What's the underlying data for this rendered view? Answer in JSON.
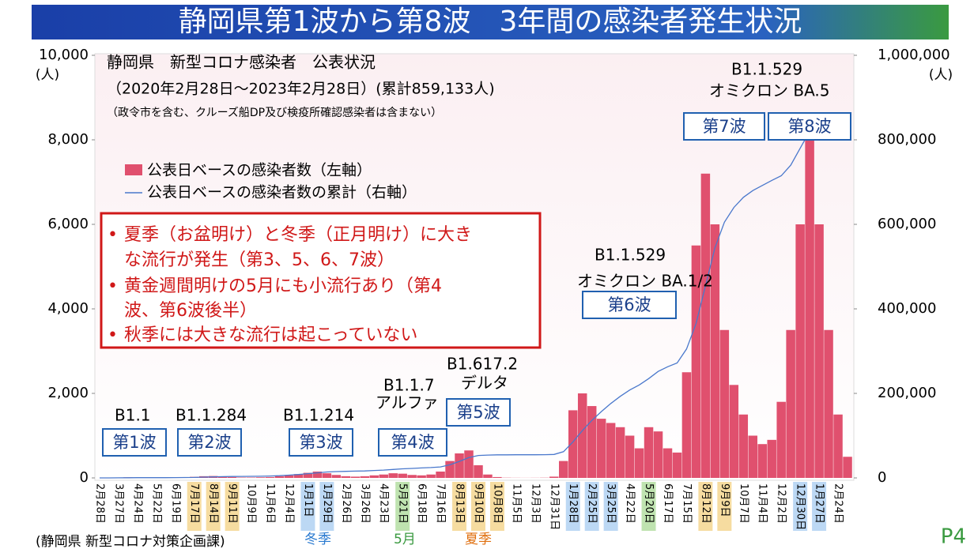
{
  "chart_data": {
    "type": "bar",
    "title": "静岡県第1波から第8波　3年間の感染者発生状況",
    "y_unit": "(人)",
    "y2_unit": "(人)",
    "header": [
      "静岡県　新型コロナ感染者　公表状況",
      "（2020年2月28日～2023年2月28日）(累計859,133人)",
      "（政令市を含む、クルーズ船DP及び検疫所確認感染者は含まない）"
    ],
    "notes": [
      "夏季（お盆明け）と冬季（正月明け）に大き",
      "な流行が発生（第3、5、6、7波）",
      "黄金週間明けの5月にも小流行あり（第4",
      "波、第6波後半）",
      "秋季には大きな流行は起こっていない"
    ],
    "variants": [
      "B1.1",
      "B1.1.284",
      "B1.1.214",
      "B1.1.7",
      "アルファ",
      "B1.617.2",
      "デルタ",
      "B1.1.529",
      "オミクロン BA.1/2",
      "B1.1.529",
      "オミクロン BA.5"
    ],
    "waves": [
      "第1波",
      "第2波",
      "第3波",
      "第4波",
      "第5波",
      "第6波",
      "第7波",
      "第8波"
    ],
    "footer": [
      "(静岡県 新型コロナ対策企画課)",
      "冬季",
      "5月",
      "夏季",
      "P4"
    ],
    "ylim": [
      0,
      10000
    ],
    "yticks": [
      0,
      {
        "value": 2000,
        "label": "2,000"
      },
      {
        "value": 4000,
        "label": "4,000"
      },
      {
        "value": 6000,
        "label": "6,000"
      },
      {
        "value": 8000,
        "label": "8,000"
      },
      {
        "value": 10000,
        "label": "10,000"
      }
    ],
    "y2lim": [
      0,
      1000000
    ],
    "y2ticks": [
      0,
      {
        "value": 200000,
        "label": "200,000"
      },
      {
        "value": 400000,
        "label": "400,000"
      },
      {
        "value": 600000,
        "label": "600,000"
      },
      {
        "value": 800000,
        "label": "800,000"
      },
      {
        "value": 1000000,
        "label": "1,000,000"
      }
    ],
    "categories": [
      "2月28日",
      null,
      "3月27日",
      null,
      "4月24日",
      null,
      "5月22日",
      null,
      "6月19日",
      null,
      "7月17日",
      null,
      "8月14日",
      null,
      "9月11日",
      null,
      "10月9日",
      null,
      "11月6日",
      null,
      "12月4日",
      null,
      "1月1日",
      null,
      "1月29日",
      null,
      "2月26日",
      null,
      "3月26日",
      null,
      "4月23日",
      null,
      "5月21日",
      null,
      "6月18日",
      null,
      "7月16日",
      null,
      "8月13日",
      null,
      "9月10日",
      null,
      "10月8日",
      null,
      "11月5日",
      null,
      "12月3日",
      null,
      "12月31日",
      null,
      "1月28日",
      null,
      "2月25日",
      null,
      "3月25日",
      null,
      "4月22日",
      null,
      "5月20日",
      null,
      "6月17日",
      null,
      "7月15日",
      null,
      "8月12日",
      null,
      "9月9日",
      null,
      "10月7日",
      null,
      "11月4日",
      null,
      "12月2日",
      null,
      "12月30日",
      null,
      "1月27日",
      null,
      "2月24日",
      null
    ],
    "series": [
      {
        "name": "公表日ベースの感染者数（左軸）",
        "color": "#e0506e",
        "values": [
          0,
          0,
          5,
          15,
          10,
          2,
          0,
          1,
          5,
          15,
          25,
          40,
          45,
          30,
          20,
          10,
          10,
          15,
          20,
          40,
          60,
          90,
          120,
          150,
          110,
          70,
          40,
          30,
          40,
          60,
          80,
          110,
          100,
          70,
          60,
          80,
          150,
          400,
          580,
          650,
          300,
          80,
          20,
          5,
          3,
          2,
          3,
          5,
          30,
          400,
          1600,
          2000,
          1700,
          1400,
          1300,
          1200,
          1000,
          700,
          1200,
          1100,
          700,
          600,
          2500,
          5500,
          7200,
          6000,
          3500,
          2200,
          1500,
          1000,
          800,
          900,
          1800,
          3500,
          6000,
          8500,
          6000,
          3500,
          1500,
          500
        ]
      },
      {
        "name": "公表日ベースの感染者数の累計（右軸）",
        "color": "#4a78cc",
        "axis": "y2",
        "values": [
          0,
          0,
          100,
          300,
          500,
          600,
          600,
          620,
          700,
          900,
          1200,
          1800,
          2500,
          3000,
          3300,
          3500,
          3700,
          4000,
          4500,
          5200,
          6500,
          8000,
          10000,
          12000,
          14000,
          15000,
          15500,
          16000,
          16500,
          17500,
          18500,
          20000,
          21500,
          22500,
          23500,
          24500,
          26000,
          31000,
          39000,
          48000,
          53000,
          54000,
          54500,
          54600,
          54700,
          54700,
          54800,
          54900,
          55500,
          62000,
          85000,
          112000,
          136000,
          157000,
          176000,
          193000,
          208000,
          220000,
          235000,
          252000,
          263000,
          272000,
          305000,
          365000,
          455000,
          545000,
          605000,
          640000,
          664000,
          680000,
          692000,
          704000,
          715000,
          740000,
          780000,
          820000,
          845000,
          853000,
          857000,
          859133
        ]
      }
    ]
  }
}
